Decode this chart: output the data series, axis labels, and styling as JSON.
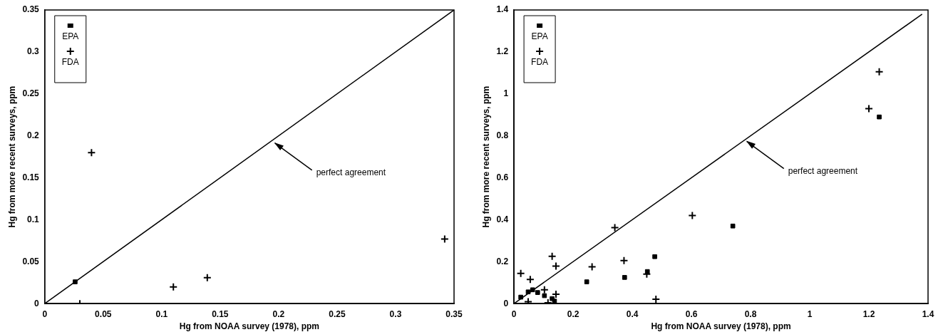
{
  "chart_data": [
    {
      "type": "scatter",
      "xlabel": "Hg from NOAA survey (1978), ppm",
      "ylabel": "Hg from more recent surveys, ppm",
      "xlim": [
        0,
        0.35
      ],
      "ylim": [
        0,
        0.35
      ],
      "xticks": [
        0,
        0.05,
        0.1,
        0.15,
        0.2,
        0.25,
        0.3,
        0.35
      ],
      "yticks": [
        0,
        0.05,
        0.1,
        0.15,
        0.2,
        0.25,
        0.3,
        0.35
      ],
      "legend": "top left",
      "grid": false,
      "series": [
        {
          "name": "EPA",
          "color": "#000000",
          "marker": "square",
          "x": [
            0.026
          ],
          "values": [
            0.026
          ]
        },
        {
          "name": "FDA",
          "color": "#000000",
          "marker": "cross",
          "x": [
            0.04,
            0.11,
            0.139,
            0.342,
            0.03
          ],
          "values": [
            0.18,
            0.02,
            0.031,
            0.077,
            0
          ]
        },
        {
          "type": "line",
          "color": "#000000",
          "x": [
            0,
            0.35
          ],
          "values": [
            0,
            0.35
          ]
        }
      ],
      "annotations": [
        {
          "text": "perfect agreement",
          "x": 0.195,
          "y": 0.193
        }
      ]
    },
    {
      "type": "scatter",
      "xlabel": "Hg from NOAA survey (1978), ppm",
      "ylabel": "Hg from more recent surveys, ppm",
      "xlim": [
        0,
        1.4
      ],
      "ylim": [
        0,
        1.4
      ],
      "xticks": [
        0,
        0.2,
        0.4,
        0.6,
        0.8,
        1,
        1.2,
        1.4
      ],
      "yticks": [
        0,
        0.2,
        0.4,
        0.6,
        0.8,
        1,
        1.2,
        1.4
      ],
      "legend": "top left",
      "grid": false,
      "series": [
        {
          "name": "EPA",
          "color": "#000000",
          "marker": "square",
          "x": [
            0.023,
            0.048,
            0.063,
            0.08,
            0.103,
            0.129,
            0.137,
            0.246,
            0.374,
            0.451,
            0.476,
            0.74,
            1.235
          ],
          "values": [
            0.031,
            0.056,
            0.066,
            0.053,
            0.038,
            0.024,
            0.012,
            0.104,
            0.125,
            0.153,
            0.224,
            0.37,
            0.89
          ]
        },
        {
          "name": "FDA",
          "color": "#000000",
          "marker": "cross",
          "x": [
            0.023,
            0.055,
            0.103,
            0.129,
            0.142,
            0.142,
            0.048,
            0.115,
            0.264,
            0.341,
            0.372,
            0.449,
            0.48,
            0.603,
            1.2,
            1.235
          ],
          "values": [
            0.144,
            0.115,
            0.066,
            0.226,
            0.179,
            0.045,
            0.009,
            0.004,
            0.176,
            0.362,
            0.205,
            0.141,
            0.021,
            0.42,
            0.93,
            1.105
          ]
        },
        {
          "type": "line",
          "color": "#000000",
          "x": [
            0,
            1.38
          ],
          "values": [
            0,
            1.38
          ]
        }
      ],
      "annotations": [
        {
          "text": "perfect agreement",
          "x": 0.78,
          "y": 0.78
        }
      ]
    }
  ]
}
